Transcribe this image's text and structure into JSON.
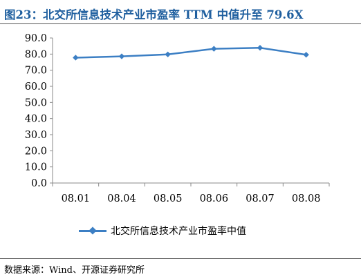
{
  "title": "图23：北交所信息技术产业市盈率 TTM 中值升至 79.6X",
  "source": "数据来源：Wind、开源证券研究所",
  "colors": {
    "title": "#1f5f9f",
    "series": "#3c7fc4",
    "axis": "#888888"
  },
  "chart_data": {
    "type": "line",
    "categories": [
      "08.01",
      "08.04",
      "08.05",
      "08.06",
      "08.07",
      "08.08"
    ],
    "series": [
      {
        "name": "北交所信息技术产业市盈率中值",
        "values": [
          77.8,
          78.6,
          79.8,
          83.3,
          83.9,
          79.6
        ]
      }
    ],
    "y_ticks": [
      "0.0",
      "10.0",
      "20.0",
      "30.0",
      "40.0",
      "50.0",
      "60.0",
      "70.0",
      "80.0",
      "90.0"
    ],
    "ylim": [
      0,
      90
    ],
    "grid": false,
    "legend": "bottom"
  }
}
